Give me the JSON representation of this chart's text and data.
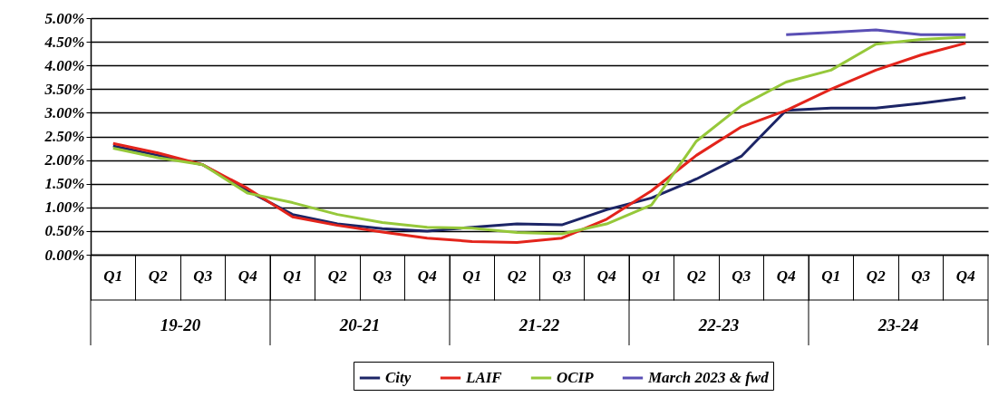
{
  "chart_data": {
    "type": "line",
    "categories": [
      "Q1",
      "Q2",
      "Q3",
      "Q4",
      "Q1",
      "Q2",
      "Q3",
      "Q4",
      "Q1",
      "Q2",
      "Q3",
      "Q4",
      "Q1",
      "Q2",
      "Q3",
      "Q4",
      "Q1",
      "Q2",
      "Q3",
      "Q4"
    ],
    "annotations": [
      "19-20",
      "20-21",
      "21-22",
      "22-23",
      "23-24"
    ],
    "series": [
      {
        "name": "City",
        "color": "#1c2566",
        "values": [
          2.3,
          2.1,
          1.9,
          1.35,
          0.85,
          0.65,
          0.55,
          0.5,
          0.58,
          0.65,
          0.63,
          0.95,
          1.2,
          1.6,
          2.08,
          3.05,
          3.1,
          3.1,
          3.2,
          3.32
        ]
      },
      {
        "name": "LAIF",
        "color": "#e3241b",
        "values": [
          2.35,
          2.15,
          1.9,
          1.4,
          0.8,
          0.62,
          0.48,
          0.35,
          0.28,
          0.26,
          0.35,
          0.75,
          1.35,
          2.1,
          2.7,
          3.05,
          3.5,
          3.9,
          4.22,
          4.47
        ]
      },
      {
        "name": "OCIP",
        "color": "#96c83a",
        "values": [
          2.25,
          2.05,
          1.9,
          1.3,
          1.1,
          0.85,
          0.68,
          0.58,
          0.56,
          0.47,
          0.44,
          0.65,
          1.05,
          2.4,
          3.15,
          3.65,
          3.9,
          4.45,
          4.55,
          4.6
        ]
      },
      {
        "name": "March 2023 & fwd",
        "color": "#5a4fb5",
        "values": [
          null,
          null,
          null,
          null,
          null,
          null,
          null,
          null,
          null,
          null,
          null,
          null,
          null,
          null,
          null,
          4.65,
          4.7,
          4.75,
          4.65,
          4.65
        ]
      }
    ],
    "ylim": [
      0,
      5
    ],
    "yticks": [
      {
        "value": 0,
        "label": "0.00%"
      },
      {
        "value": 0.5,
        "label": "0.50%"
      },
      {
        "value": 1,
        "label": "1.00%"
      },
      {
        "value": 1.5,
        "label": "1.50%"
      },
      {
        "value": 2,
        "label": "2.00%"
      },
      {
        "value": 2.5,
        "label": "2.50%"
      },
      {
        "value": 3,
        "label": "3.00%"
      },
      {
        "value": 3.5,
        "label": "3.50%"
      },
      {
        "value": 4,
        "label": "4.00%"
      },
      {
        "value": 4.5,
        "label": "4.50%"
      },
      {
        "value": 5,
        "label": "5.00%"
      }
    ],
    "grid": "y",
    "legend": "bottom right",
    "marker": "none",
    "line_style": "solid"
  }
}
